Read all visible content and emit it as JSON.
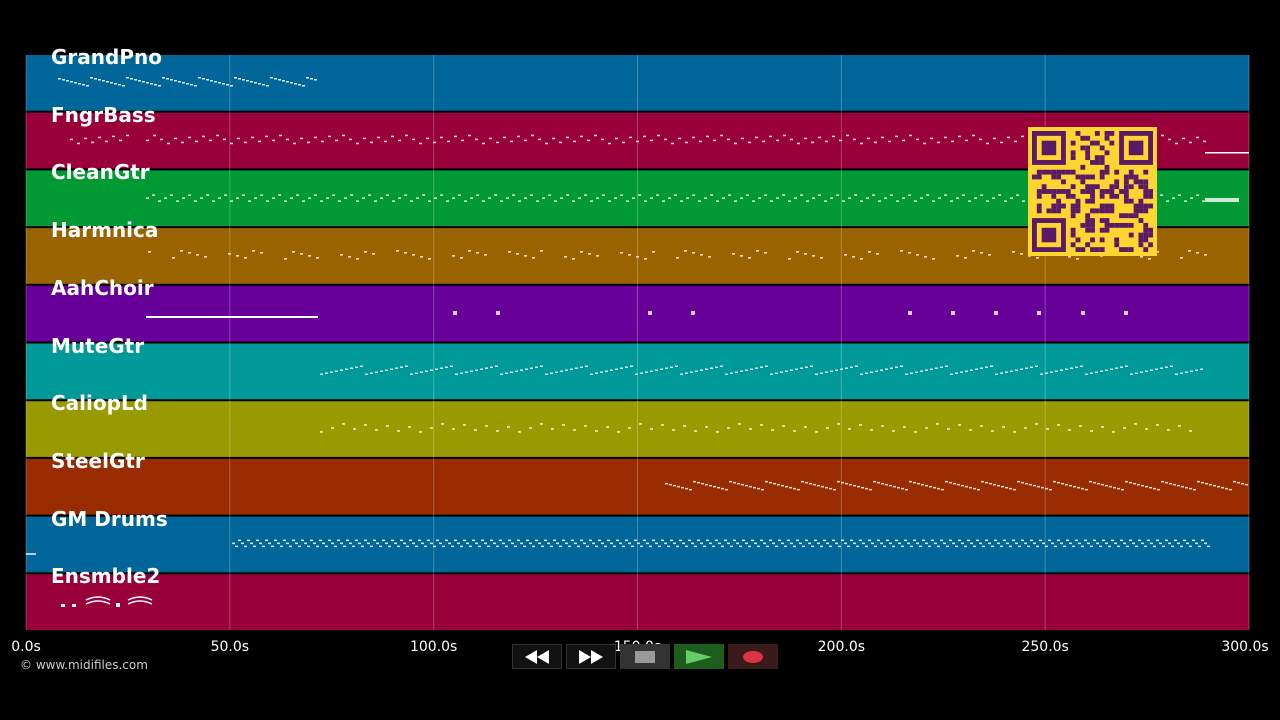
{
  "tracks": [
    {
      "name": "GrandPno",
      "color": "#006699"
    },
    {
      "name": "FngrBass",
      "color": "#99003a"
    },
    {
      "name": "CleanGtr",
      "color": "#009933"
    },
    {
      "name": "Harmnica",
      "color": "#996300"
    },
    {
      "name": "AahChoir",
      "color": "#660099"
    },
    {
      "name": "MuteGtr",
      "color": "#009999"
    },
    {
      "name": "CaliopLd",
      "color": "#999900"
    },
    {
      "name": "SteelGtr",
      "color": "#992b00"
    },
    {
      "name": "GM Drums",
      "color": "#006699"
    },
    {
      "name": "Ensmble2",
      "color": "#99003a"
    }
  ],
  "timeline": {
    "ticks": [
      "0.0s",
      "50.0s",
      "100.0s",
      "150.0s",
      "200.0s",
      "250.0s",
      "300.0s"
    ],
    "tick_values": [
      0,
      50,
      100,
      150,
      200,
      250,
      300
    ],
    "max_seconds": 300
  },
  "copyright": "© www.midifiles.com",
  "controls": {
    "rewind_icon": "rewind-icon",
    "fast_forward_icon": "fast-forward-icon",
    "stop_icon": "stop-icon",
    "play_icon": "play-icon",
    "record_icon": "record-icon",
    "play_color": "#66cc66",
    "record_color": "#dd3344"
  },
  "qr_code": {
    "color": "#ffd631",
    "module_color": "#5a1a66"
  }
}
